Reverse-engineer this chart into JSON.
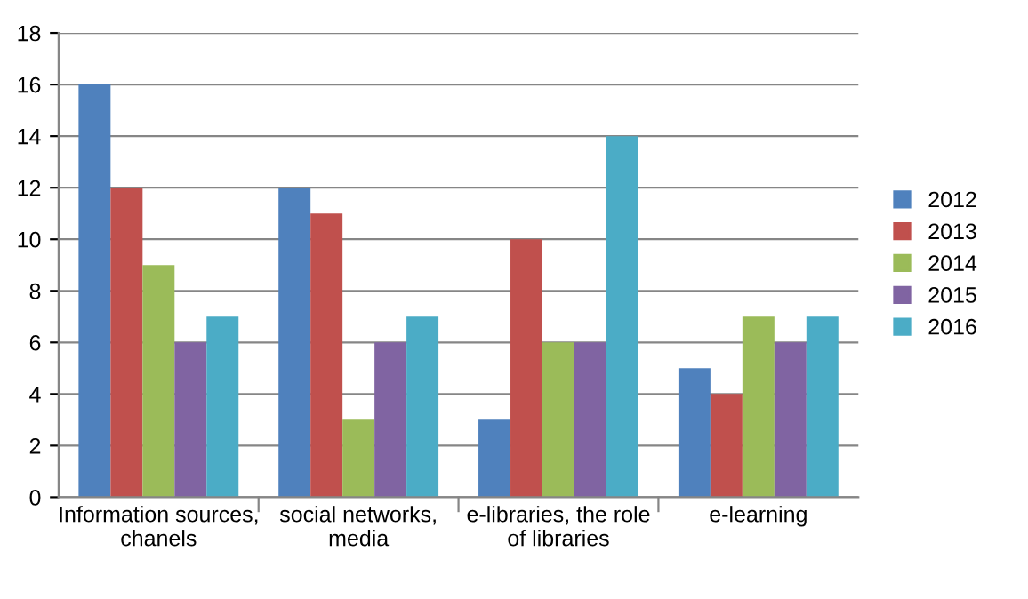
{
  "chart_data": {
    "type": "bar",
    "categories": [
      "Information sources,\nchanels",
      "social networks,\nmedia",
      "e-libraries, the role\nof libraries",
      "e-learning"
    ],
    "series": [
      {
        "name": "2012",
        "color": "#4f81bd",
        "values": [
          16,
          12,
          3,
          5
        ]
      },
      {
        "name": "2013",
        "color": "#c0504d",
        "values": [
          12,
          11,
          10,
          4
        ]
      },
      {
        "name": "2014",
        "color": "#9bbb59",
        "values": [
          9,
          3,
          6,
          7
        ]
      },
      {
        "name": "2015",
        "color": "#8064a2",
        "values": [
          6,
          6,
          6,
          6
        ]
      },
      {
        "name": "2016",
        "color": "#4bacc6",
        "values": [
          7,
          7,
          14,
          7
        ]
      }
    ],
    "ylim": [
      0,
      18
    ],
    "yticks": [
      0,
      2,
      4,
      6,
      8,
      10,
      12,
      14,
      16,
      18
    ],
    "grid": "y",
    "legend": "right"
  }
}
